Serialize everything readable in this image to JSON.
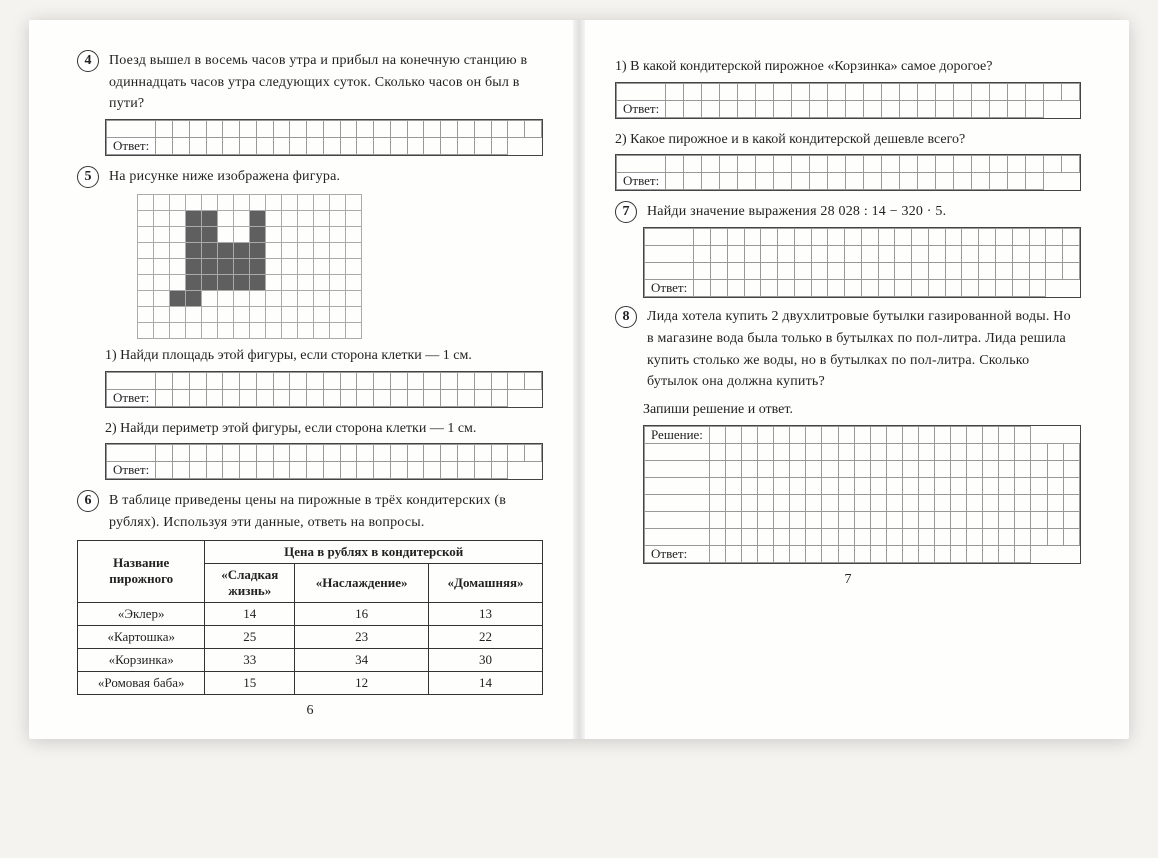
{
  "left": {
    "q4": {
      "num": "4",
      "text": "Поезд вышел в восемь часов утра и прибыл на конечную станцию в одиннадцать часов утра следующих суток. Сколько часов он был в пути?",
      "answer_label": "Ответ:"
    },
    "q5": {
      "num": "5",
      "text": "На рисунке ниже изображена фигура.",
      "figure": {
        "rows": 9,
        "cols": 14,
        "filled": [
          [
            1,
            3
          ],
          [
            1,
            4
          ],
          [
            1,
            7
          ],
          [
            2,
            3
          ],
          [
            2,
            4
          ],
          [
            2,
            7
          ],
          [
            3,
            3
          ],
          [
            3,
            4
          ],
          [
            3,
            5
          ],
          [
            3,
            6
          ],
          [
            3,
            7
          ],
          [
            4,
            3
          ],
          [
            4,
            4
          ],
          [
            4,
            5
          ],
          [
            4,
            6
          ],
          [
            4,
            7
          ],
          [
            5,
            3
          ],
          [
            5,
            4
          ],
          [
            5,
            5
          ],
          [
            5,
            6
          ],
          [
            5,
            7
          ],
          [
            6,
            2
          ],
          [
            6,
            3
          ]
        ]
      },
      "sub1": "1) Найди площадь этой фигуры, если сторона клетки — 1 см.",
      "sub2": "2) Найди периметр этой фигуры, если сторона клетки — 1 см.",
      "answer_label": "Ответ:"
    },
    "q6": {
      "num": "6",
      "text": "В таблице приведены цены на пирожные в трёх кондитерских (в рублях). Используя эти данные, ответь на вопросы.",
      "table": {
        "rowheader": "Название пирожного",
        "colheader": "Цена в рублях в кондитерской",
        "columns": [
          "«Сладкая жизнь»",
          "«Наслаждение»",
          "«Домашняя»"
        ],
        "rows": [
          {
            "name": "«Эклер»",
            "vals": [
              "14",
              "16",
              "13"
            ]
          },
          {
            "name": "«Картошка»",
            "vals": [
              "25",
              "23",
              "22"
            ]
          },
          {
            "name": "«Корзинка»",
            "vals": [
              "33",
              "34",
              "30"
            ]
          },
          {
            "name": "«Ромовая баба»",
            "vals": [
              "15",
              "12",
              "14"
            ]
          }
        ]
      }
    },
    "pagenum": "6"
  },
  "right": {
    "q6_1": {
      "text": "1) В какой кондитерской пирожное «Корзинка» самое дорогое?",
      "answer_label": "Ответ:"
    },
    "q6_2": {
      "text": "2) Какое пирожное и в какой кондитерской дешевле всего?",
      "answer_label": "Ответ:"
    },
    "q7": {
      "num": "7",
      "text": "Найди значение выражения 28 028 : 14 − 320 · 5.",
      "answer_label": "Ответ:"
    },
    "q8": {
      "num": "8",
      "text": "Лида хотела купить 2 двухлитровые бутылки газированной воды. Но в магазине вода была только в бутылках по пол-литра. Лида решила купить столько же воды, но в бутылках по пол-литра. Сколько бутылок она должна купить?",
      "hint": "Запиши решение и ответ.",
      "solution_label": "Решение:",
      "answer_label": "Ответ:"
    },
    "pagenum": "7"
  },
  "style": {
    "grid_cols": 24,
    "answer_rows": 2,
    "work_rows_q7": 4,
    "solution_rows": 6,
    "colors": {
      "page_bg": "#fefefd",
      "body_bg": "#f5f3ef",
      "grid_line": "#999999",
      "fig_fill": "#5f5f5f",
      "text": "#222222"
    }
  }
}
